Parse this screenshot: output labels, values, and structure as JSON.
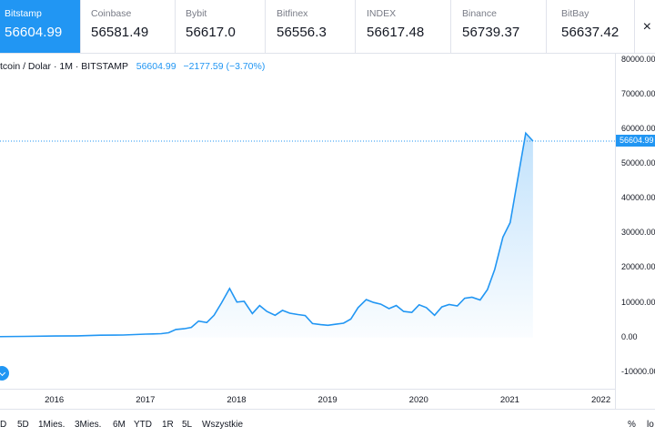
{
  "tabs": [
    {
      "name": "Bitstamp",
      "price": "56604.99",
      "active": true
    },
    {
      "name": "Coinbase",
      "price": "56581.49"
    },
    {
      "name": "Bybit",
      "price": "56617.0"
    },
    {
      "name": "Bitfinex",
      "price": "56556.3"
    },
    {
      "name": "INDEX",
      "price": "56617.48"
    },
    {
      "name": "Binance",
      "price": "56739.37"
    },
    {
      "name": "BitBay",
      "price": "56637.42"
    }
  ],
  "legend": {
    "symbol": "tcoin / Dolar · 1M · BITSTAMP",
    "last_price": "56604.99",
    "change": "−2177.59 (−3.70%)"
  },
  "price_tag": "56604.99",
  "ranges": [
    "D",
    "5D",
    "1Mies.",
    "3Mies.",
    "6M",
    "YTD",
    "1R",
    "5L",
    "Wszystkie"
  ],
  "bottom_right": {
    "percent": "%",
    "log": "lo"
  },
  "colors": {
    "accent": "#2196f3"
  },
  "chart_data": {
    "type": "area",
    "x_ticks": [
      "2016",
      "2017",
      "2018",
      "2019",
      "2020",
      "2021",
      "2022"
    ],
    "y_ticks": [
      "80000.00",
      "70000.00",
      "60000.00",
      "50000.00",
      "40000.00",
      "30000.00",
      "20000.00",
      "10000.00",
      "0.00",
      "-10000.00"
    ],
    "ylim": [
      -14000,
      81000
    ],
    "xlim": [
      2015.4,
      2022.15
    ],
    "last_value": 56604.99,
    "series": [
      {
        "x": [
          2015.33,
          2015.67,
          2016.0,
          2016.25,
          2016.5,
          2016.75,
          2017.0,
          2017.08,
          2017.17,
          2017.25,
          2017.33,
          2017.42,
          2017.5,
          2017.58,
          2017.67,
          2017.75,
          2017.83,
          2017.92,
          2018.0,
          2018.08,
          2018.17,
          2018.25,
          2018.33,
          2018.42,
          2018.5,
          2018.58,
          2018.67,
          2018.75,
          2018.83,
          2018.92,
          2019.0,
          2019.08,
          2019.17,
          2019.25,
          2019.33,
          2019.42,
          2019.5,
          2019.58,
          2019.67,
          2019.75,
          2019.83,
          2019.92,
          2020.0,
          2020.08,
          2020.17,
          2020.25,
          2020.33,
          2020.42,
          2020.5,
          2020.58,
          2020.67,
          2020.75,
          2020.83,
          2020.92,
          2021.0,
          2021.08,
          2021.17,
          2021.25
        ],
        "y": [
          230,
          300,
          420,
          450,
          650,
          700,
          950,
          1000,
          1100,
          1350,
          2300,
          2500,
          2900,
          4700,
          4300,
          6400,
          9900,
          14100,
          10200,
          10400,
          6900,
          9200,
          7500,
          6400,
          7800,
          7000,
          6600,
          6300,
          4000,
          3700,
          3500,
          3800,
          4100,
          5300,
          8600,
          10900,
          10100,
          9600,
          8300,
          9200,
          7500,
          7200,
          9400,
          8600,
          6400,
          8800,
          9500,
          9100,
          11300,
          11600,
          10800,
          13800,
          19600,
          28900,
          33100,
          45200,
          58900,
          56600
        ]
      }
    ]
  }
}
